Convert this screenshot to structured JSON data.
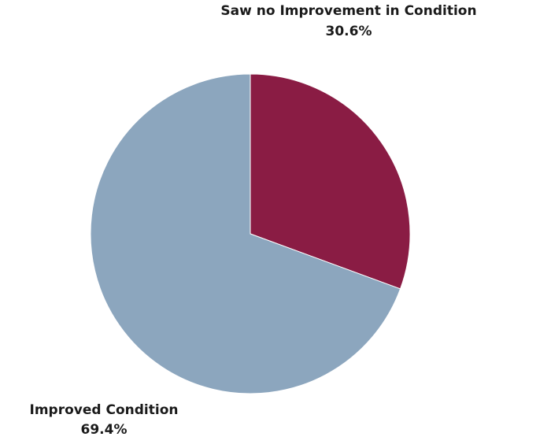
{
  "chart_data": {
    "type": "pie",
    "title": "",
    "slices": [
      {
        "label": "Saw no Improvement in Condition",
        "value": 30.6,
        "value_label": "30.6%",
        "color": "#8a1c44"
      },
      {
        "label": "Improved Condition",
        "value": 69.4,
        "value_label": "69.4%",
        "color": "#8ca6be"
      }
    ],
    "start_angle": "12 o'clock",
    "direction": "clockwise"
  }
}
